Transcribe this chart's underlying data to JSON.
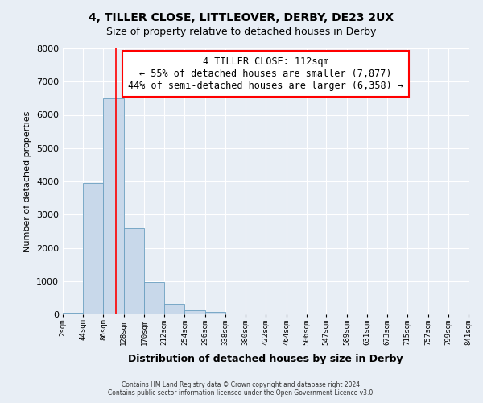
{
  "title": "4, TILLER CLOSE, LITTLEOVER, DERBY, DE23 2UX",
  "subtitle": "Size of property relative to detached houses in Derby",
  "xlabel": "Distribution of detached houses by size in Derby",
  "ylabel": "Number of detached properties",
  "bar_color": "#c8d8ea",
  "bar_edge_color": "#6a9fc0",
  "background_color": "#e8eef5",
  "grid_color": "#ffffff",
  "bin_edges": [
    2,
    44,
    86,
    128,
    170,
    212,
    254,
    296,
    338,
    380,
    422,
    464,
    506,
    547,
    589,
    631,
    673,
    715,
    757,
    799,
    841
  ],
  "bin_labels": [
    "2sqm",
    "44sqm",
    "86sqm",
    "128sqm",
    "170sqm",
    "212sqm",
    "254sqm",
    "296sqm",
    "338sqm",
    "380sqm",
    "422sqm",
    "464sqm",
    "506sqm",
    "547sqm",
    "589sqm",
    "631sqm",
    "673sqm",
    "715sqm",
    "757sqm",
    "799sqm",
    "841sqm"
  ],
  "bar_heights": [
    50,
    3950,
    6500,
    2600,
    960,
    320,
    130,
    70,
    0,
    0,
    0,
    0,
    0,
    0,
    0,
    0,
    0,
    0,
    0,
    0
  ],
  "property_line_x": 112,
  "ylim": [
    0,
    8000
  ],
  "yticks": [
    0,
    1000,
    2000,
    3000,
    4000,
    5000,
    6000,
    7000,
    8000
  ],
  "annotation_title": "4 TILLER CLOSE: 112sqm",
  "annotation_line1": "← 55% of detached houses are smaller (7,877)",
  "annotation_line2": "44% of semi-detached houses are larger (6,358) →",
  "footer_line1": "Contains HM Land Registry data © Crown copyright and database right 2024.",
  "footer_line2": "Contains public sector information licensed under the Open Government Licence v3.0."
}
